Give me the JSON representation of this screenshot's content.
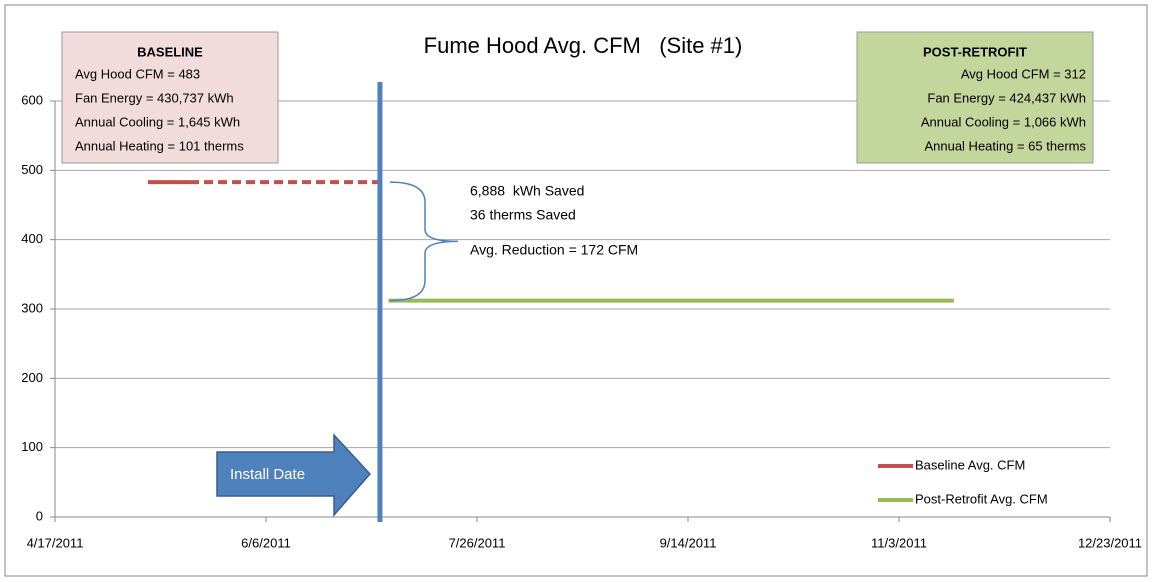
{
  "chart_data": {
    "type": "line",
    "title": "Fume Hood Avg. CFM   (Site #1)",
    "xlim": [
      "2011-04-17",
      "2011-12-23"
    ],
    "xticks": [
      {
        "value": "2011-04-17",
        "label": "4/17/2011"
      },
      {
        "value": "2011-06-06",
        "label": "6/6/2011"
      },
      {
        "value": "2011-07-26",
        "label": "7/26/2011"
      },
      {
        "value": "2011-09-14",
        "label": "9/14/2011"
      },
      {
        "value": "2011-11-03",
        "label": "11/3/2011"
      },
      {
        "value": "2011-12-23",
        "label": "12/23/2011"
      }
    ],
    "ylim": [
      0,
      600
    ],
    "yticks": [
      0,
      100,
      200,
      300,
      400,
      500,
      600
    ],
    "grid": true,
    "legend": "lower right",
    "series": [
      {
        "name": "Baseline Avg. CFM",
        "color": "#c0504d",
        "x": [
          "2011-05-09",
          "2011-05-19",
          "2011-07-04"
        ],
        "values": [
          483,
          483,
          483
        ],
        "dashed": [
          false,
          true
        ]
      },
      {
        "name": "Post-Retrofit Avg. CFM",
        "color": "#9bbb59",
        "x": [
          "2011-07-05",
          "2011-11-16"
        ],
        "values": [
          312,
          312
        ],
        "dashed": [
          false
        ]
      }
    ],
    "install": {
      "label": "Install Date",
      "x": "2011-07-03",
      "color": "#4f81bd"
    },
    "boxes": [
      {
        "title": "BASELINE",
        "color": "#f2dcdb",
        "align": "left",
        "lines": [
          "Avg Hood CFM = 483",
          "Fan Energy = 430,737 kWh",
          "Annual Cooling = 1,645 kWh",
          "Annual Heating = 101 therms"
        ]
      },
      {
        "title": "POST-RETROFIT",
        "color": "#c3d69b",
        "align": "right",
        "lines": [
          "Avg Hood CFM = 312",
          "Fan Energy = 424,437 kWh",
          "Annual Cooling = 1,066 kWh",
          "Annual Heating = 65 therms"
        ]
      }
    ],
    "savings": [
      "6,888  kWh Saved",
      "36 therms Saved",
      "Avg. Reduction = 172 CFM"
    ]
  }
}
